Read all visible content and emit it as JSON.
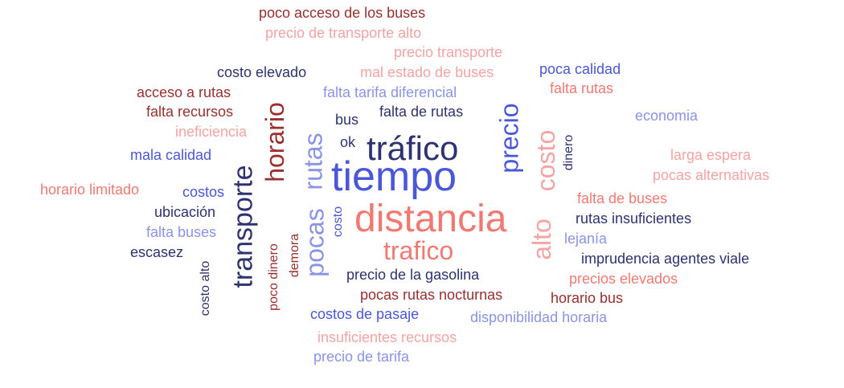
{
  "colors": {
    "dark_red": "#9a2f2f",
    "light_red": "#f5a3a3",
    "salmon": "#f07a72",
    "navy": "#2e3270",
    "blue": "#4a57d8",
    "light_blue": "#8b93e8"
  },
  "words": [
    "poco acceso de los buses",
    "precio de transporte alto",
    "precio transporte",
    "costo elevado",
    "mal estado de buses",
    "poca calidad",
    "acceso a rutas",
    "falta tarifa diferencial",
    "falta rutas",
    "falta recursos",
    "horario",
    "falta de rutas",
    "economia",
    "bus",
    "ineficiencia",
    "precio",
    "ok",
    "tráfico",
    "costo",
    "dinero",
    "mala calidad",
    "larga espera",
    "rutas",
    "tiempo",
    "pocas alternativas",
    "transporte",
    "horario limitado",
    "costos",
    "alto",
    "falta de buses",
    "pocas",
    "distancia",
    "ubicación",
    "rutas insuficientes",
    "costo",
    "falta buses",
    "lejanía",
    "trafico",
    "escasez",
    "demora",
    "imprudencia agentes viale",
    "poco dinero",
    "costo alto",
    "precio de la gasolina",
    "precios elevados",
    "pocas rutas nocturnas",
    "horario bus",
    "costos de pasaje",
    "disponibilidad horaria",
    "insuficientes recursos",
    "precio de tarifa"
  ]
}
